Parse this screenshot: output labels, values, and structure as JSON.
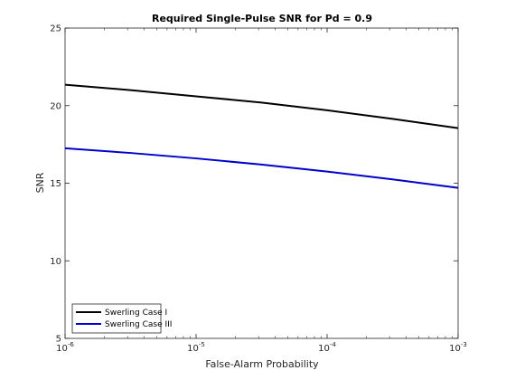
{
  "chart_data": {
    "type": "line",
    "title": "Required Single-Pulse SNR for Pd = 0.9",
    "xlabel": "False-Alarm Probability",
    "ylabel": "SNR",
    "xscale": "log",
    "xlim": [
      1e-06,
      0.001
    ],
    "ylim": [
      5,
      25
    ],
    "xticks": [
      {
        "value": 1e-06,
        "base": "10",
        "exp": "-6"
      },
      {
        "value": 1e-05,
        "base": "10",
        "exp": "-5"
      },
      {
        "value": 0.0001,
        "base": "10",
        "exp": "-4"
      },
      {
        "value": 0.001,
        "base": "10",
        "exp": "-3"
      }
    ],
    "yticks": [
      {
        "value": 5,
        "label": "5"
      },
      {
        "value": 10,
        "label": "10"
      },
      {
        "value": 15,
        "label": "15"
      },
      {
        "value": 20,
        "label": "20"
      },
      {
        "value": 25,
        "label": "25"
      }
    ],
    "grid": false,
    "legend_position": "bottom-left",
    "series": [
      {
        "name": "Swerling Case I",
        "color": "#000000",
        "x": [
          1e-06,
          3.16e-06,
          1e-05,
          3.16e-05,
          0.0001,
          0.000316,
          0.001
        ],
        "y": [
          21.35,
          21.0,
          20.6,
          20.2,
          19.7,
          19.15,
          18.55
        ]
      },
      {
        "name": "Swerling Case III",
        "color": "#0000cc",
        "x": [
          1e-06,
          3.16e-06,
          1e-05,
          3.16e-05,
          0.0001,
          0.000316,
          0.001
        ],
        "y": [
          17.25,
          16.95,
          16.6,
          16.2,
          15.75,
          15.25,
          14.7
        ]
      }
    ]
  }
}
